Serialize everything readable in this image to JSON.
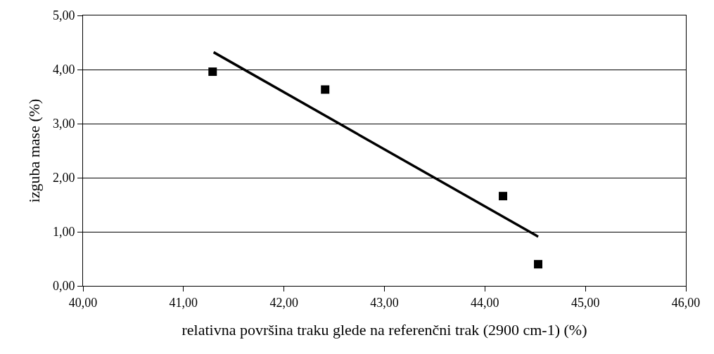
{
  "chart_data": {
    "type": "scatter",
    "xlabel": "relativna površina traku glede na referenčni trak (2900 cm-1) (%)",
    "ylabel": "izguba mase (%)",
    "x": [
      41.29,
      42.41,
      44.18,
      44.53
    ],
    "series": [
      {
        "type": "scatter",
        "color": "#000000",
        "marker": "square",
        "values": [
          3.96,
          3.63,
          1.66,
          0.4
        ]
      },
      {
        "type": "line",
        "color": "#000000",
        "marker": "none",
        "line_style": "solid",
        "x": [
          41.3,
          44.53
        ],
        "values": [
          4.32,
          0.91
        ]
      }
    ],
    "xlim": [
      40,
      46
    ],
    "xticks": [
      {
        "value": 40,
        "label": "40,00"
      },
      {
        "value": 41,
        "label": "41,00"
      },
      {
        "value": 42,
        "label": "42,00"
      },
      {
        "value": 43,
        "label": "43,00"
      },
      {
        "value": 44,
        "label": "44,00"
      },
      {
        "value": 45,
        "label": "45,00"
      },
      {
        "value": 46,
        "label": "46,00"
      }
    ],
    "ylim": [
      0,
      5
    ],
    "yticks": [
      {
        "value": 0,
        "label": "0,00"
      },
      {
        "value": 1,
        "label": "1,00"
      },
      {
        "value": 2,
        "label": "2,00"
      },
      {
        "value": 3,
        "label": "3,00"
      },
      {
        "value": 4,
        "label": "4,00"
      },
      {
        "value": 5,
        "label": "5,00"
      }
    ],
    "grid": "y",
    "legend": false
  }
}
